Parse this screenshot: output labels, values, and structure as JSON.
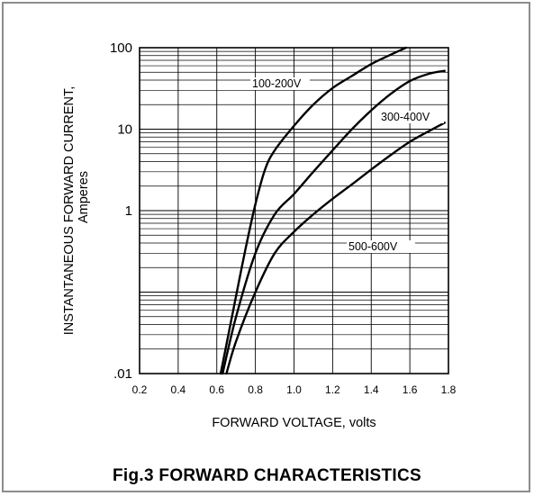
{
  "figure": {
    "caption": "Fig.3 FORWARD CHARACTERISTICS"
  },
  "chart_data": {
    "type": "line",
    "title": "",
    "xlabel": "FORWARD VOLTAGE, volts",
    "ylabel": "INSTANTANEOUS FORWARD CURRENT,",
    "ylabel_unit": "Amperes",
    "xlim": [
      0.2,
      1.8
    ],
    "ylim": [
      0.01,
      100
    ],
    "yscale": "log",
    "grid": true,
    "x_ticks": [
      0.2,
      0.4,
      0.6,
      0.8,
      1.0,
      1.2,
      1.4,
      1.6,
      1.8
    ],
    "x_tick_labels": [
      "0.2",
      "0.4",
      "0.6",
      "0.8",
      "1.0",
      "1.2",
      "1.4",
      "1.6",
      "1.8"
    ],
    "y_ticks": [
      0.01,
      1,
      10,
      100
    ],
    "y_tick_labels": [
      ".01",
      "1",
      "10",
      "100"
    ],
    "series": [
      {
        "name": "100-200V",
        "x": [
          0.62,
          0.66,
          0.7,
          0.75,
          0.8,
          0.85,
          0.9,
          1.0,
          1.1,
          1.2,
          1.3,
          1.4,
          1.5,
          1.58
        ],
        "y": [
          0.01,
          0.03,
          0.09,
          0.35,
          1.2,
          3.2,
          5.5,
          11,
          20,
          32,
          45,
          63,
          82,
          100
        ]
      },
      {
        "name": "300-400V",
        "x": [
          0.63,
          0.7,
          0.8,
          0.9,
          1.0,
          1.1,
          1.2,
          1.3,
          1.4,
          1.5,
          1.6,
          1.7,
          1.78
        ],
        "y": [
          0.01,
          0.05,
          0.3,
          0.9,
          1.6,
          3.0,
          5.5,
          10,
          17,
          27,
          39,
          48,
          52
        ]
      },
      {
        "name": "500-600V",
        "x": [
          0.65,
          0.7,
          0.8,
          0.9,
          1.0,
          1.1,
          1.2,
          1.3,
          1.4,
          1.5,
          1.6,
          1.7,
          1.78
        ],
        "y": [
          0.01,
          0.025,
          0.1,
          0.3,
          0.55,
          0.9,
          1.4,
          2.1,
          3.2,
          4.8,
          7,
          9.5,
          12
        ]
      }
    ],
    "legend": "inline"
  }
}
